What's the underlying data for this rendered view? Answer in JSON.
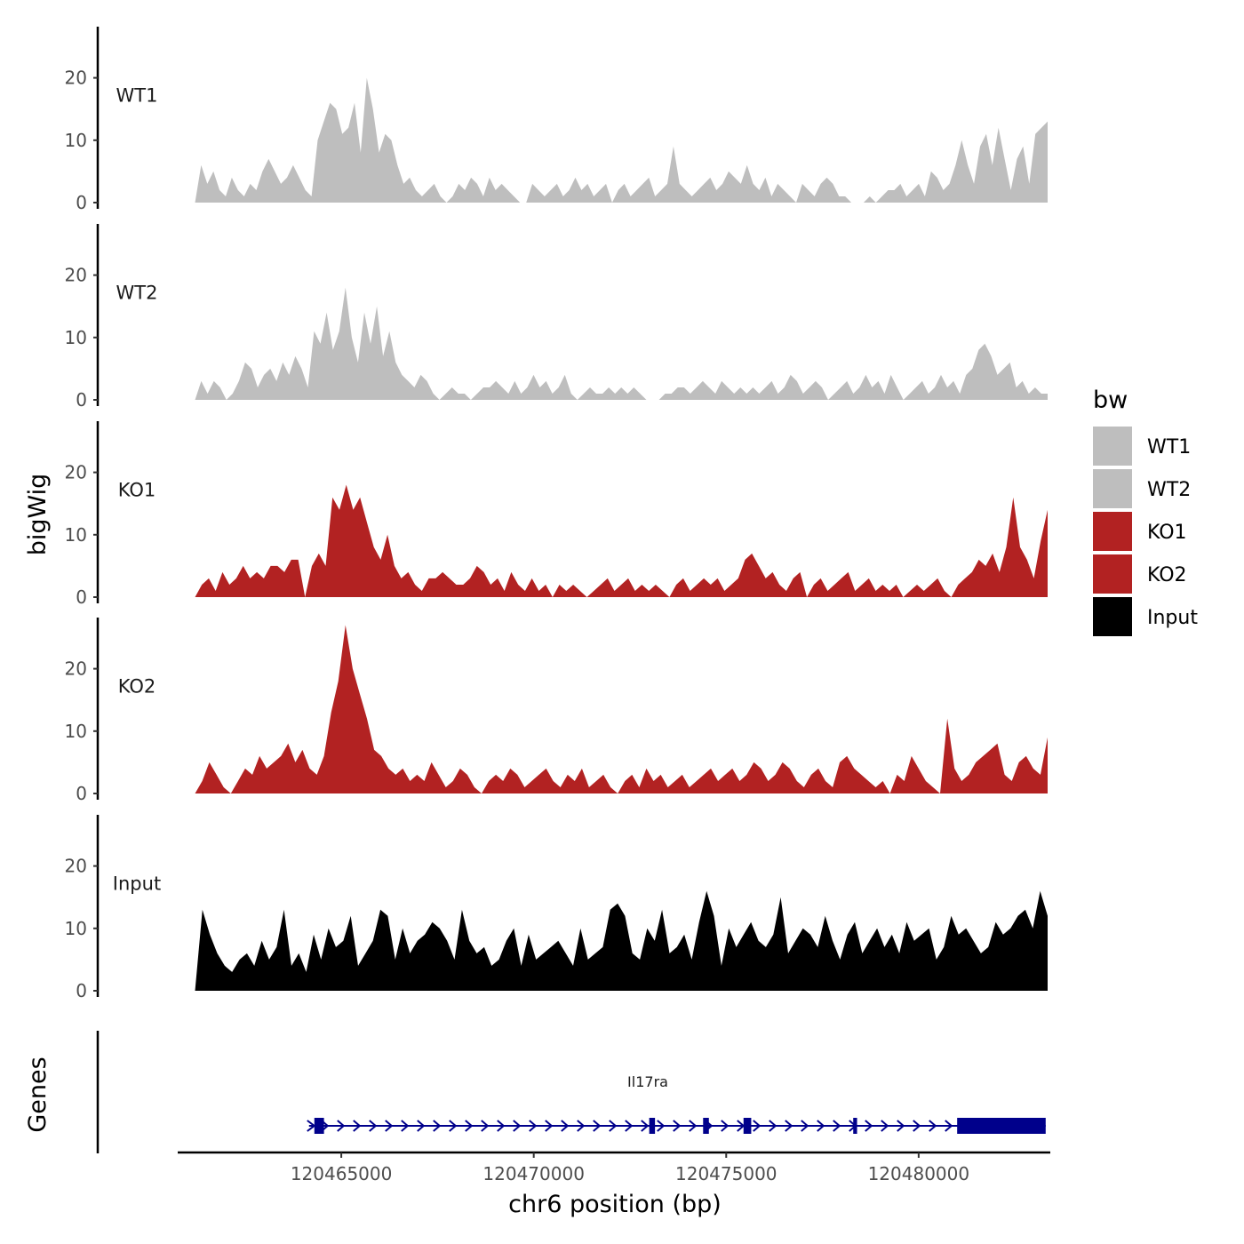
{
  "chart_data": {
    "type": "area",
    "chromosome": "chr6",
    "xlabel": "chr6 position (bp)",
    "ylabel": "bigWig",
    "genes_label": "Genes",
    "xlim": [
      120460750,
      120483420
    ],
    "x_ticks": [
      120465000,
      120470000,
      120475000,
      120480000
    ],
    "x_tick_labels": [
      "120465000",
      "120470000",
      "120475000",
      "120480000"
    ],
    "ylim": [
      0,
      28
    ],
    "y_ticks": [
      0,
      10,
      20
    ],
    "y_tick_labels": [
      "0",
      "10",
      "20"
    ],
    "track_start": 120461200,
    "track_end": 120483350,
    "legend": {
      "title": "bw",
      "entries": [
        {
          "label": "WT1",
          "color": "#BEBEBE"
        },
        {
          "label": "WT2",
          "color": "#BEBEBE"
        },
        {
          "label": "KO1",
          "color": "#B22222"
        },
        {
          "label": "KO2",
          "color": "#B22222"
        },
        {
          "label": "Input",
          "color": "#000000"
        }
      ]
    },
    "series": [
      {
        "name": "WT1",
        "color": "#BEBEBE",
        "values": [
          0,
          6,
          3,
          5,
          2,
          1,
          4,
          2,
          1,
          3,
          2,
          5,
          7,
          5,
          3,
          4,
          6,
          4,
          2,
          1,
          10,
          13,
          16,
          15,
          11,
          12,
          16,
          8,
          20,
          15,
          8,
          11,
          10,
          6,
          3,
          4,
          2,
          1,
          2,
          3,
          1,
          0,
          1,
          3,
          2,
          4,
          3,
          1,
          4,
          2,
          3,
          2,
          1,
          0,
          0,
          3,
          2,
          1,
          2,
          3,
          1,
          2,
          4,
          2,
          3,
          1,
          2,
          3,
          0,
          2,
          3,
          1,
          2,
          3,
          4,
          1,
          2,
          3,
          9,
          3,
          2,
          1,
          2,
          3,
          4,
          2,
          3,
          5,
          4,
          3,
          6,
          3,
          2,
          4,
          1,
          3,
          2,
          1,
          0,
          3,
          2,
          1,
          3,
          4,
          3,
          1,
          1,
          0,
          0,
          0,
          1,
          0,
          1,
          2,
          2,
          3,
          1,
          2,
          3,
          1,
          5,
          4,
          2,
          3,
          6,
          10,
          6,
          3,
          9,
          11,
          6,
          12,
          7,
          2,
          7,
          9,
          3,
          11,
          12,
          13
        ]
      },
      {
        "name": "WT2",
        "color": "#BEBEBE",
        "values": [
          0,
          3,
          1,
          3,
          2,
          0,
          1,
          3,
          6,
          5,
          2,
          4,
          5,
          3,
          6,
          4,
          7,
          5,
          2,
          11,
          9,
          14,
          8,
          11,
          18,
          10,
          6,
          14,
          9,
          15,
          7,
          11,
          6,
          4,
          3,
          2,
          4,
          3,
          1,
          0,
          1,
          2,
          1,
          1,
          0,
          1,
          2,
          2,
          3,
          2,
          1,
          3,
          1,
          2,
          4,
          2,
          3,
          1,
          2,
          4,
          1,
          0,
          1,
          2,
          1,
          1,
          2,
          1,
          2,
          1,
          2,
          1,
          0,
          0,
          0,
          1,
          1,
          2,
          2,
          1,
          2,
          3,
          2,
          1,
          3,
          2,
          1,
          2,
          1,
          2,
          1,
          2,
          3,
          1,
          2,
          4,
          3,
          1,
          2,
          3,
          2,
          0,
          1,
          2,
          3,
          1,
          2,
          4,
          2,
          3,
          1,
          4,
          2,
          0,
          1,
          2,
          3,
          1,
          2,
          4,
          2,
          3,
          1,
          4,
          5,
          8,
          9,
          7,
          4,
          5,
          6,
          2,
          3,
          1,
          2,
          1,
          1
        ]
      },
      {
        "name": "KO1",
        "color": "#B22222",
        "values": [
          0,
          2,
          3,
          1,
          4,
          2,
          3,
          5,
          3,
          4,
          3,
          5,
          5,
          4,
          6,
          6,
          0,
          5,
          7,
          5,
          16,
          14,
          18,
          14,
          16,
          12,
          8,
          6,
          10,
          5,
          3,
          4,
          2,
          1,
          3,
          3,
          4,
          3,
          2,
          2,
          3,
          5,
          4,
          2,
          3,
          1,
          4,
          2,
          1,
          3,
          1,
          2,
          0,
          2,
          1,
          2,
          1,
          0,
          1,
          2,
          3,
          1,
          2,
          3,
          1,
          2,
          1,
          2,
          1,
          0,
          2,
          3,
          1,
          2,
          3,
          2,
          3,
          1,
          2,
          3,
          6,
          7,
          5,
          3,
          4,
          2,
          1,
          3,
          4,
          0,
          2,
          3,
          1,
          2,
          3,
          4,
          1,
          2,
          3,
          1,
          2,
          1,
          2,
          0,
          1,
          2,
          1,
          2,
          3,
          1,
          0,
          2,
          3,
          4,
          6,
          5,
          7,
          4,
          8,
          16,
          8,
          6,
          3,
          9,
          14
        ]
      },
      {
        "name": "KO2",
        "color": "#B22222",
        "values": [
          0,
          2,
          5,
          3,
          1,
          0,
          2,
          4,
          3,
          6,
          4,
          5,
          6,
          8,
          5,
          7,
          4,
          3,
          6,
          13,
          18,
          27,
          20,
          16,
          12,
          7,
          6,
          4,
          3,
          4,
          2,
          3,
          2,
          5,
          3,
          1,
          2,
          4,
          3,
          1,
          0,
          2,
          3,
          2,
          4,
          3,
          1,
          2,
          3,
          4,
          2,
          1,
          3,
          2,
          4,
          1,
          2,
          3,
          1,
          0,
          2,
          3,
          1,
          4,
          2,
          3,
          1,
          2,
          3,
          1,
          2,
          3,
          4,
          2,
          3,
          4,
          2,
          3,
          5,
          4,
          2,
          3,
          5,
          4,
          2,
          1,
          3,
          4,
          2,
          1,
          5,
          6,
          4,
          3,
          2,
          1,
          2,
          0,
          3,
          2,
          6,
          4,
          2,
          1,
          0,
          12,
          4,
          2,
          3,
          5,
          6,
          7,
          8,
          3,
          2,
          5,
          6,
          4,
          3,
          9
        ]
      },
      {
        "name": "Input",
        "color": "#000000",
        "values": [
          0,
          13,
          9,
          6,
          4,
          3,
          5,
          6,
          4,
          8,
          5,
          7,
          13,
          4,
          6,
          3,
          9,
          5,
          10,
          7,
          8,
          12,
          4,
          6,
          8,
          13,
          12,
          5,
          10,
          6,
          8,
          9,
          11,
          10,
          8,
          5,
          13,
          8,
          6,
          7,
          4,
          5,
          8,
          10,
          4,
          9,
          5,
          6,
          7,
          8,
          6,
          4,
          10,
          5,
          6,
          7,
          13,
          14,
          12,
          6,
          5,
          10,
          8,
          13,
          6,
          7,
          9,
          5,
          11,
          16,
          12,
          4,
          10,
          7,
          9,
          11,
          8,
          7,
          9,
          15,
          6,
          8,
          10,
          9,
          7,
          12,
          8,
          5,
          9,
          11,
          6,
          8,
          10,
          7,
          9,
          6,
          11,
          8,
          9,
          10,
          5,
          7,
          12,
          9,
          10,
          8,
          6,
          7,
          11,
          9,
          10,
          12,
          13,
          10,
          16,
          12
        ]
      }
    ],
    "gene": {
      "name": "Il17ra",
      "strand": "+",
      "start": 120464300,
      "end": 120483300,
      "color": "#00008B",
      "exons": [
        [
          120464300,
          120464550
        ],
        [
          120473000,
          120473150
        ],
        [
          120474400,
          120474550
        ],
        [
          120475450,
          120475650
        ],
        [
          120478300,
          120478400
        ],
        [
          120481000,
          120483300
        ]
      ]
    }
  }
}
